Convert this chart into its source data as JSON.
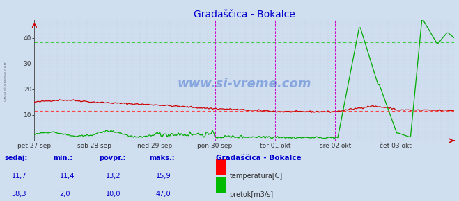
{
  "title": "Gradaščica - Bokalce",
  "title_color": "#0000cc",
  "bg_color": "#d0dff0",
  "plot_bg_color": "#d0dff0",
  "fig_bg_color": "#d0dff0",
  "x_min": 0,
  "x_max": 335,
  "y_min": 0,
  "y_max": 47,
  "y_ticks": [
    10,
    20,
    30,
    40
  ],
  "x_tick_labels": [
    "pet 27 sep",
    "sob 28 sep",
    "ned 29 sep",
    "pon 30 sep",
    "tor 01 okt",
    "sre 02 okt",
    "čet 03 okt"
  ],
  "x_tick_positions": [
    0,
    48,
    96,
    144,
    192,
    240,
    288
  ],
  "red_hline": 11.7,
  "green_hline": 38.3,
  "watermark": "www.si-vreme.com",
  "legend_title": "Gradaščica - Bokalce",
  "legend_temp": "temperatura[C]",
  "legend_flow": "pretok[m3/s]",
  "temp_color": "#cc0000",
  "flow_color": "#00aa00",
  "dashed_red": "#ff4444",
  "dashed_green": "#44cc44",
  "vline_color_black": "#555555",
  "vline_color_magenta": "#cc00cc",
  "sidebar_text": "www.si-vreme.com",
  "table_headers": [
    "sedaj:",
    "min.:",
    "povpr.:",
    "maks.:"
  ],
  "table_temp": [
    "11,7",
    "11,4",
    "13,2",
    "15,9"
  ],
  "table_flow": [
    "38,3",
    "2,0",
    "10,0",
    "47,0"
  ],
  "table_color": "#0000cc"
}
